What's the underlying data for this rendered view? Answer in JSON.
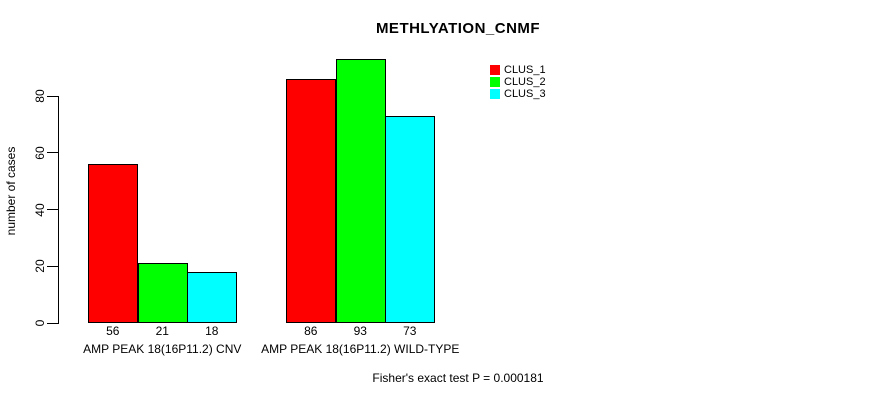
{
  "chart_data": {
    "type": "bar",
    "title": "METHLYATION_CNMF",
    "ylabel": "number of cases",
    "xlabel": "",
    "annotation": "Fisher's exact test P = 0.000181",
    "categories": [
      "AMP PEAK 18(16P11.2) CNV",
      "AMP PEAK 18(16P11.2) WILD-TYPE"
    ],
    "series": [
      {
        "name": "CLUS_1",
        "color": "#ff0000",
        "values": [
          56,
          86
        ]
      },
      {
        "name": "CLUS_2",
        "color": "#00ff00",
        "values": [
          21,
          93
        ]
      },
      {
        "name": "CLUS_3",
        "color": "#00ffff",
        "values": [
          18,
          73
        ]
      }
    ],
    "y_ticks": [
      0,
      20,
      40,
      60,
      80
    ],
    "ylim": [
      0,
      97
    ],
    "legend_position": "top-right",
    "grid": false,
    "bar_border_color": "#000000",
    "background_color": "#ffffff"
  }
}
